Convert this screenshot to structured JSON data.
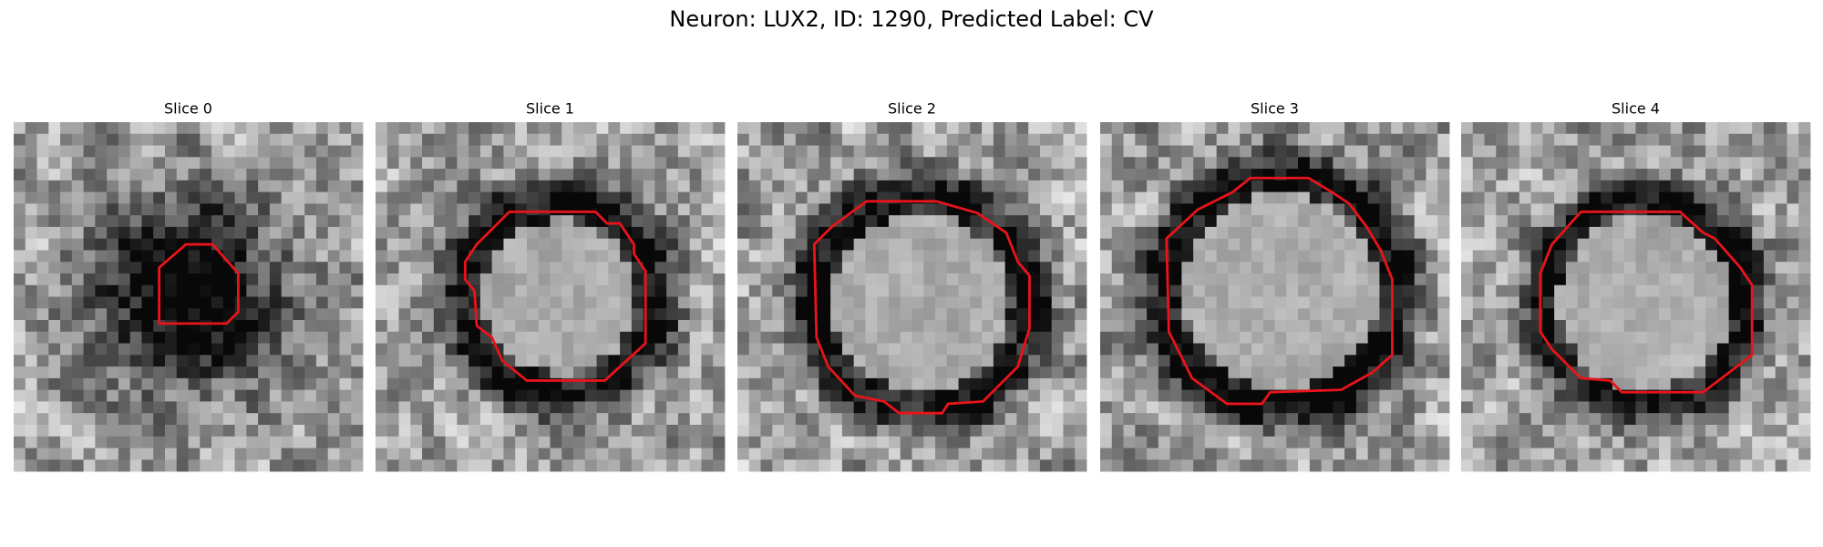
{
  "title": "Neuron: LUX2, ID: 1290, Predicted Label: CV",
  "panels": [
    {
      "title": "Slice 0"
    },
    {
      "title": "Slice 1"
    },
    {
      "title": "Slice 2"
    },
    {
      "title": "Slice 3"
    },
    {
      "title": "Slice 4"
    }
  ]
}
